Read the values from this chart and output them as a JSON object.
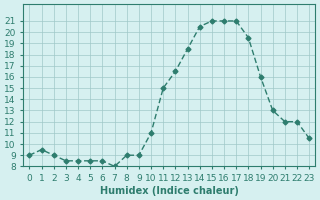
{
  "x": [
    0,
    1,
    2,
    3,
    4,
    5,
    6,
    7,
    8,
    9,
    10,
    11,
    12,
    13,
    14,
    15,
    16,
    17,
    18,
    19,
    20,
    21,
    22,
    23
  ],
  "y": [
    9,
    9.5,
    9,
    8.5,
    8.5,
    8.5,
    8.5,
    8,
    9,
    9,
    11,
    15,
    16.5,
    18.5,
    20.5,
    21,
    21,
    21,
    19.5,
    16,
    13,
    12,
    12,
    10.5
  ],
  "xlabel": "Humidex (Indice chaleur)",
  "ylabel": "",
  "ylim": [
    8,
    22
  ],
  "xlim": [
    0,
    23
  ],
  "yticks": [
    8,
    9,
    10,
    11,
    12,
    13,
    14,
    15,
    16,
    17,
    18,
    19,
    20,
    21
  ],
  "xticks": [
    0,
    1,
    2,
    3,
    4,
    5,
    6,
    7,
    8,
    9,
    10,
    11,
    12,
    13,
    14,
    15,
    16,
    17,
    18,
    19,
    20,
    21,
    22,
    23
  ],
  "line_color": "#2e7d6e",
  "marker_color": "#2e7d6e",
  "bg_color": "#d6f0f0",
  "grid_color": "#a0c8c8",
  "title_fontsize": 7,
  "label_fontsize": 7,
  "tick_fontsize": 6.5
}
